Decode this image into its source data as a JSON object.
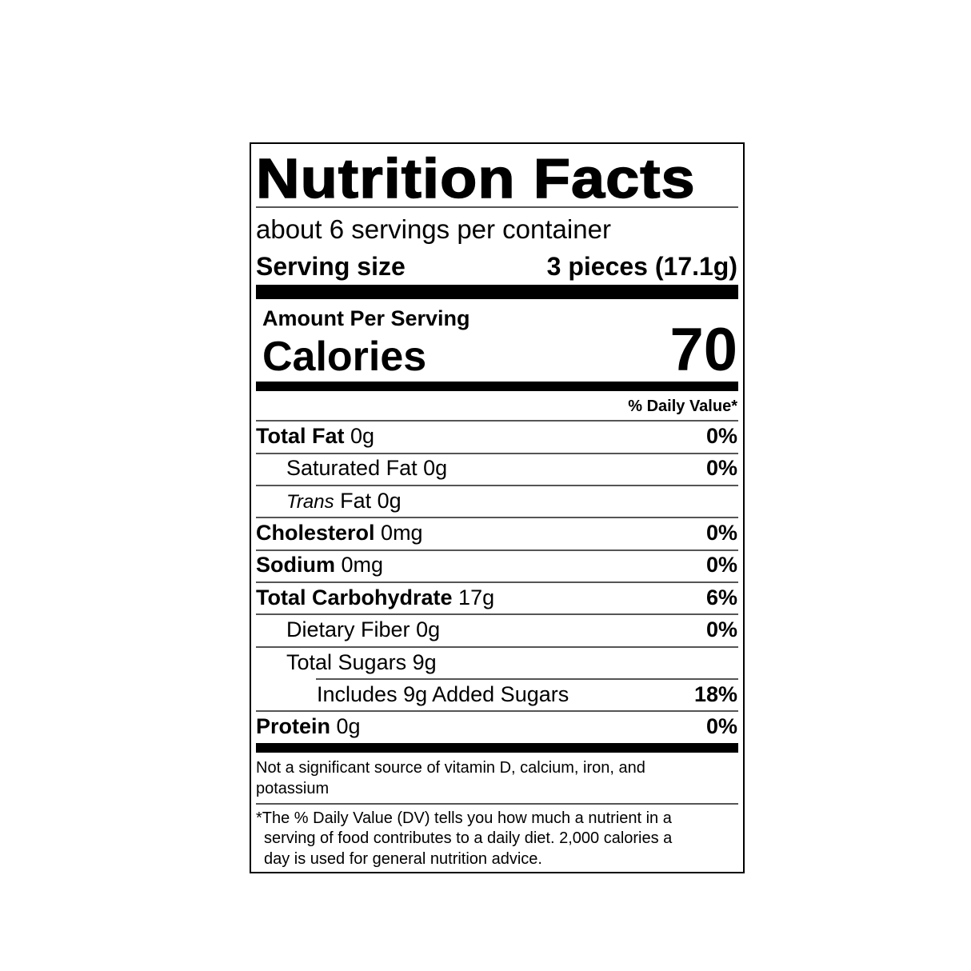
{
  "title": "Nutrition Facts",
  "servings_per_container": "about 6 servings per container",
  "serving_size": {
    "label": "Serving size",
    "value": "3 pieces (17.1g)"
  },
  "amount_per_serving": "Amount Per Serving",
  "calories": {
    "label": "Calories",
    "value": "70"
  },
  "daily_value_header": "% Daily Value*",
  "rows": [
    {
      "name": "Total Fat",
      "amount": "0g",
      "dv": "0%"
    },
    {
      "name": "Saturated Fat",
      "amount": "0g",
      "dv": "0%"
    },
    {
      "name_italic": "Trans",
      "name": "Fat",
      "amount": "0g",
      "dv": ""
    },
    {
      "name": "Cholesterol",
      "amount": "0mg",
      "dv": "0%"
    },
    {
      "name": "Sodium",
      "amount": "0mg",
      "dv": "0%"
    },
    {
      "name": "Total Carbohydrate",
      "amount": "17g",
      "dv": "6%"
    },
    {
      "name": "Dietary Fiber",
      "amount": "0g",
      "dv": "0%"
    },
    {
      "name": "Total Sugars",
      "amount": "9g",
      "dv": ""
    },
    {
      "name": "Includes 9g Added Sugars",
      "amount": "",
      "dv": "18%"
    },
    {
      "name": "Protein",
      "amount": "0g",
      "dv": "0%"
    }
  ],
  "not_significant": [
    "Not a significant source of vitamin D, calcium, iron, and",
    "potassium"
  ],
  "footnote": [
    "*The % Daily Value (DV) tells you how much a nutrient in a",
    "serving of food contributes to a daily diet. 2,000 calories a",
    "day is used for general nutrition advice."
  ]
}
